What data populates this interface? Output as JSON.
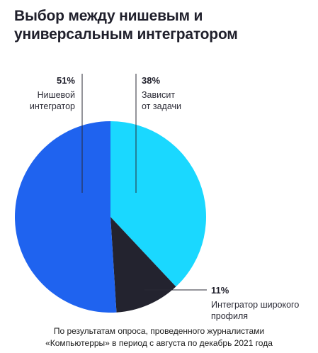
{
  "chart_data": {
    "type": "pie",
    "title": "Выбор между нишевым и универсальным интегратором",
    "slices": [
      {
        "label": "Нишевой интегратор",
        "label_lines": [
          "Нишевой",
          "интегратор"
        ],
        "percent_text": "51%",
        "value": 51,
        "color": "#1f63ef"
      },
      {
        "label": "Зависит от задачи",
        "label_lines": [
          "Зависит",
          "от задачи"
        ],
        "percent_text": "38%",
        "value": 38,
        "color": "#1ad8ff"
      },
      {
        "label": "Интегратор широкого профиля",
        "label_lines": [
          "Интегратор широкого",
          "профиля"
        ],
        "percent_text": "11%",
        "value": 11,
        "color": "#23232f"
      }
    ],
    "legend": "none",
    "grid": false
  },
  "source_note": {
    "line1": "По результатам опроса, проведенного журналистами",
    "line2": "«Компьютерры» в период с августа по декабрь 2021 года"
  }
}
